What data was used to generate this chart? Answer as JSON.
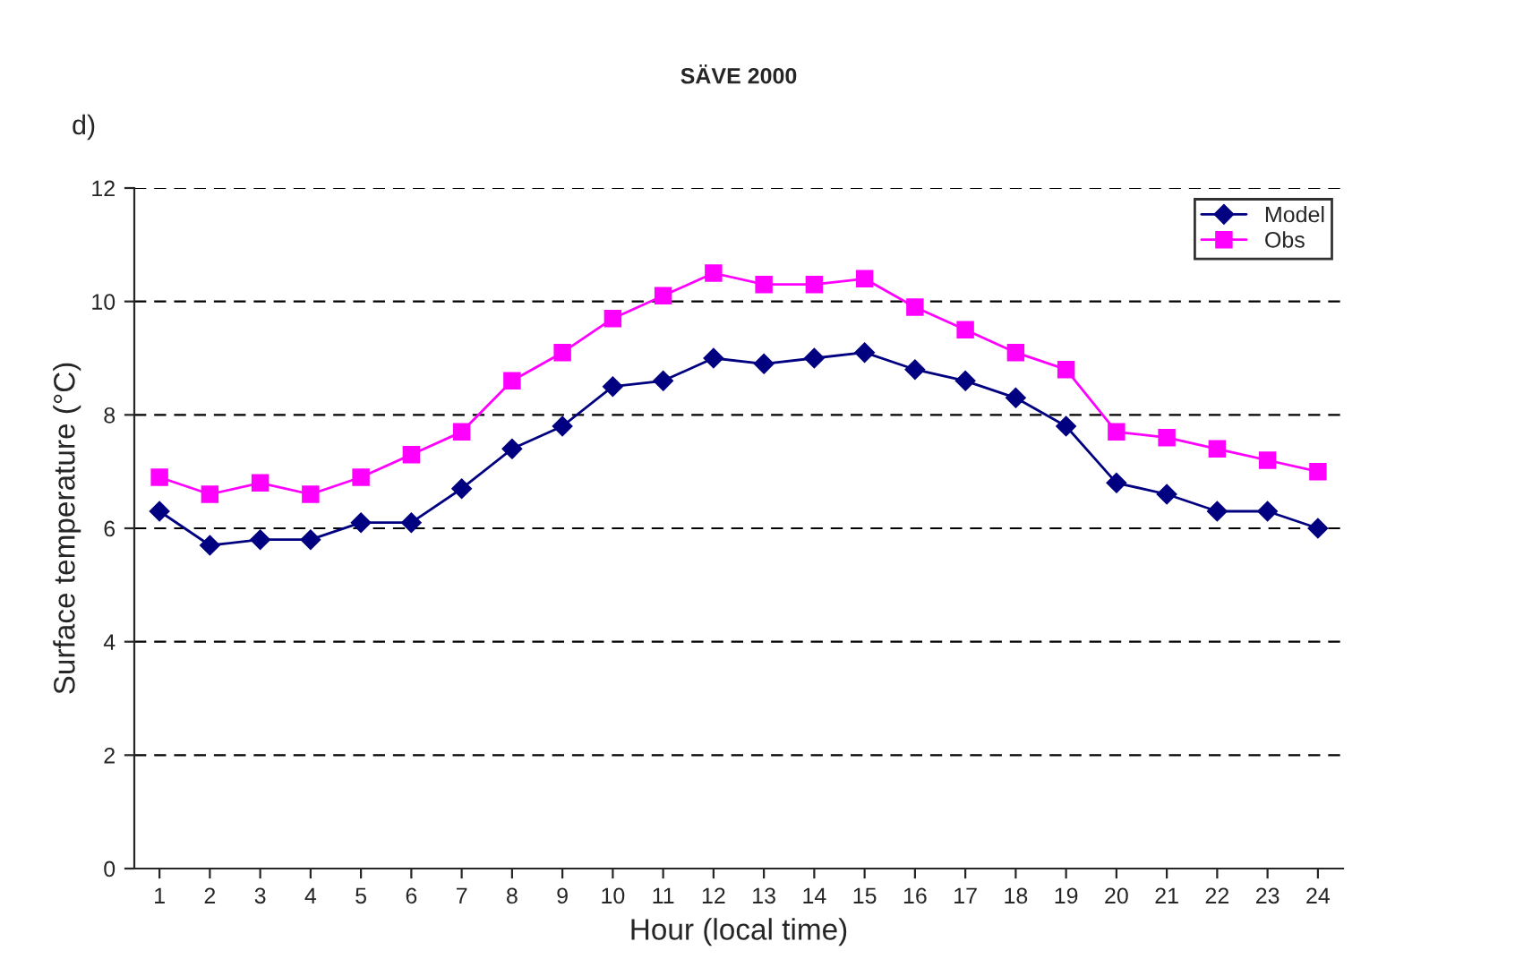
{
  "chart_data": {
    "type": "line",
    "title": "SÄVE 2000",
    "xlabel": "Hour (local time)",
    "ylabel": "Surface temperature (°C)",
    "annotations": [
      "d)"
    ],
    "categories": [
      "1",
      "2",
      "3",
      "4",
      "5",
      "6",
      "7",
      "8",
      "9",
      "10",
      "11",
      "12",
      "13",
      "14",
      "15",
      "16",
      "17",
      "18",
      "19",
      "20",
      "21",
      "22",
      "23",
      "24"
    ],
    "series": [
      {
        "name": "Model",
        "color": "#000080",
        "marker": "diamond",
        "values": [
          6.3,
          5.7,
          5.8,
          5.8,
          6.1,
          6.1,
          6.7,
          7.4,
          7.8,
          8.5,
          8.6,
          9.0,
          8.9,
          9.0,
          9.1,
          8.8,
          8.6,
          8.3,
          7.8,
          6.8,
          6.6,
          6.3,
          6.3,
          6.0
        ]
      },
      {
        "name": "Obs",
        "color": "#ff00ff",
        "marker": "square",
        "values": [
          6.9,
          6.6,
          6.8,
          6.6,
          6.9,
          7.3,
          7.7,
          8.6,
          9.1,
          9.7,
          10.1,
          10.5,
          10.3,
          10.3,
          10.4,
          9.9,
          9.5,
          9.1,
          8.8,
          7.7,
          7.6,
          7.4,
          7.2,
          7.0
        ]
      }
    ],
    "ylim": [
      0,
      12
    ],
    "yticks": [
      0,
      2,
      4,
      6,
      8,
      10,
      12
    ],
    "grid": "y",
    "legend": "top right",
    "line_style": "solid"
  }
}
